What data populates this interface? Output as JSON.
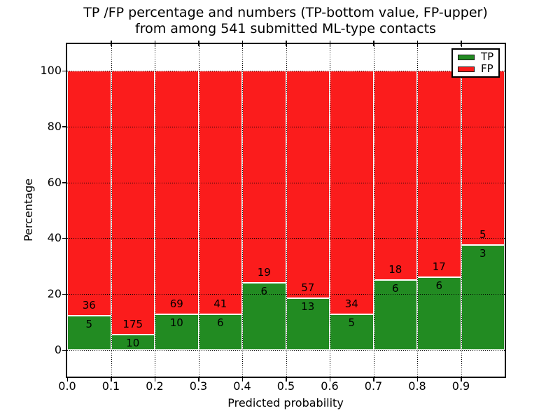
{
  "chart_data": {
    "type": "bar",
    "stacked": true,
    "title_line1": "TP /FP percentage and numbers (TP-bottom value, FP-upper)",
    "title_line2": "from among 541 submitted ML-type contacts",
    "xlabel": "Predicted probability",
    "ylabel": "Percentage",
    "total_contacts": 541,
    "x_tick_labels": [
      "0.0",
      "0.1",
      "0.2",
      "0.3",
      "0.4",
      "0.5",
      "0.6",
      "0.7",
      "0.8",
      "0.9"
    ],
    "y_tick_labels": [
      "0",
      "20",
      "40",
      "60",
      "80",
      "100"
    ],
    "y_tick_values": [
      0,
      20,
      40,
      60,
      80,
      100
    ],
    "xlim": [
      0.0,
      1.0
    ],
    "ylim": [
      -9.5,
      109.7
    ],
    "grid": true,
    "bin_width": 0.1,
    "bin_starts": [
      0.0,
      0.1,
      0.2,
      0.3,
      0.4,
      0.5,
      0.6,
      0.7,
      0.8,
      0.9
    ],
    "series": [
      {
        "name": "TP",
        "color": "#228b22",
        "counts": [
          5,
          10,
          10,
          6,
          6,
          13,
          5,
          6,
          6,
          3
        ]
      },
      {
        "name": "FP",
        "color": "#fb1c1c",
        "counts": [
          36,
          175,
          69,
          41,
          19,
          57,
          34,
          18,
          17,
          5
        ]
      }
    ],
    "tp_percent": [
      12.2,
      5.41,
      12.66,
      12.77,
      24.0,
      18.57,
      12.82,
      25.0,
      26.09,
      37.5
    ],
    "legend": {
      "position": "upper right",
      "entries": [
        {
          "label": "TP",
          "color": "#228b22"
        },
        {
          "label": "FP",
          "color": "#fb1c1c"
        }
      ]
    },
    "colors": {
      "background": "#ffffff",
      "text": "#000000",
      "bar_edge": "#ffffff",
      "grid": "#000000"
    }
  }
}
